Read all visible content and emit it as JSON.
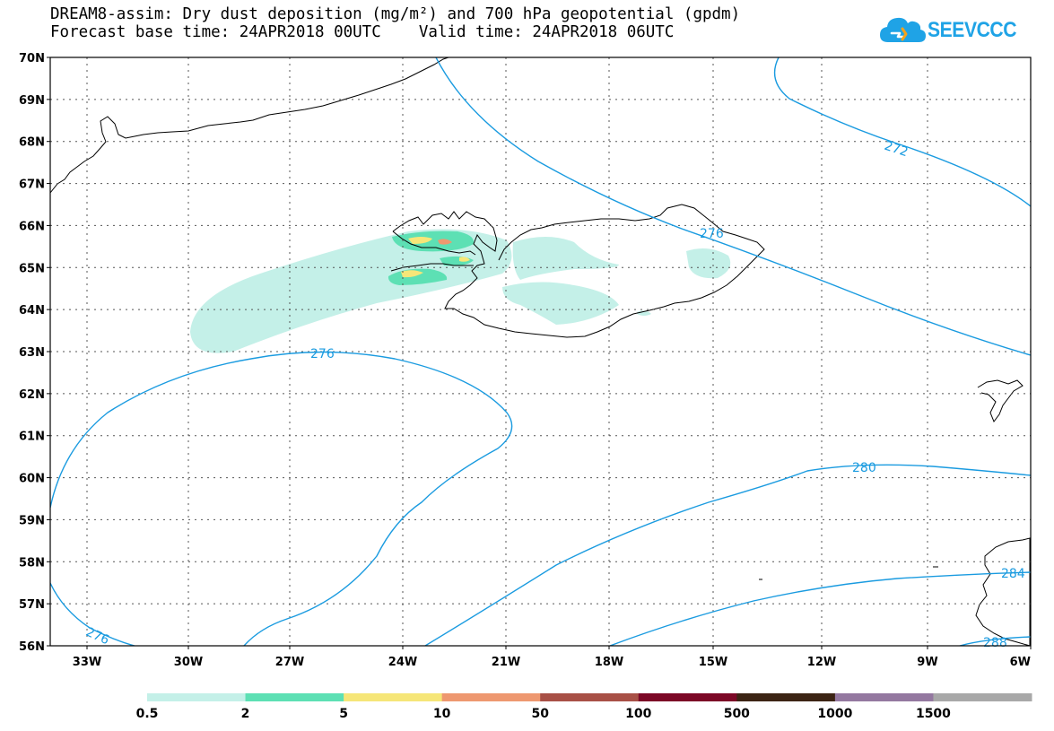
{
  "title": {
    "line1": "DREAM8-assim: Dry dust deposition (mg/m²) and 700 hPa geopotential (gpdm)",
    "line2": "Forecast base time: 24APR2018 00UTC    Valid time: 24APR2018 06UTC"
  },
  "logo": {
    "text": "SEEVCCC",
    "icon": "cloud-icon",
    "color": "#1fa3e6"
  },
  "map": {
    "lat_labels": [
      "70N",
      "69N",
      "68N",
      "67N",
      "66N",
      "65N",
      "64N",
      "63N",
      "62N",
      "61N",
      "60N",
      "59N",
      "58N",
      "57N",
      "56N"
    ],
    "lon_labels": [
      "33W",
      "30W",
      "27W",
      "24W",
      "21W",
      "18W",
      "15W",
      "12W",
      "9W",
      "6W"
    ],
    "contour_color": "#1a9be0",
    "contour_labels": [
      "272",
      "276",
      "276",
      "280",
      "276",
      "284",
      "288"
    ]
  },
  "legend": {
    "colors": [
      "#c4f0e8",
      "#5de0b4",
      "#f6e678",
      "#ee9870",
      "#a85046",
      "#7c0826",
      "#3c2414",
      "#9478a0",
      "#a8a8a8"
    ],
    "labels": [
      "0.5",
      "2",
      "5",
      "10",
      "50",
      "100",
      "500",
      "1000",
      "1500"
    ]
  }
}
